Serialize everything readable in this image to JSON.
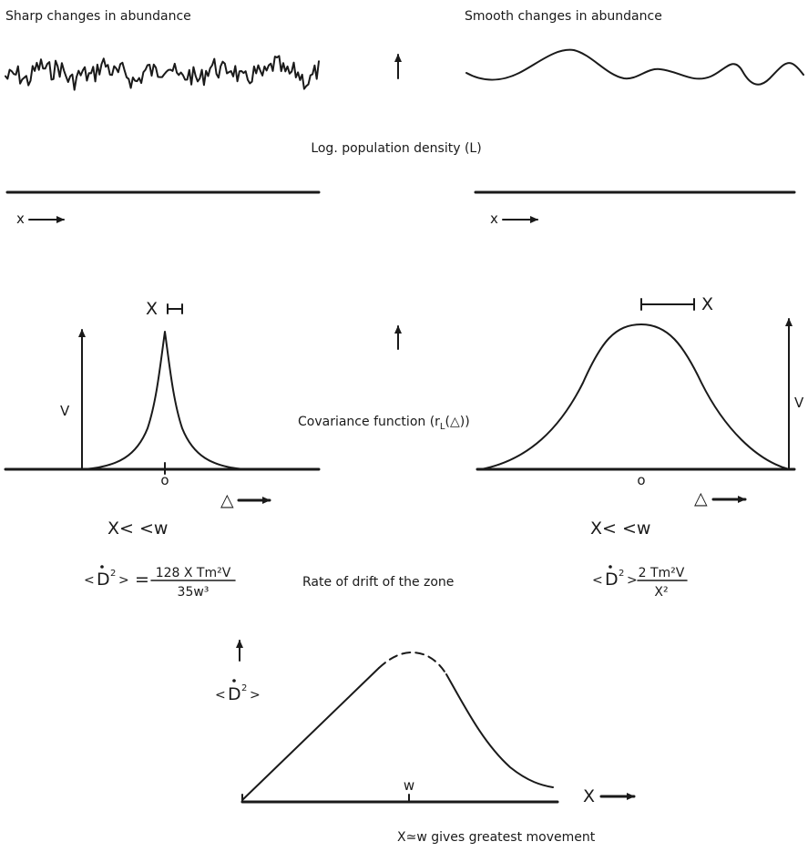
{
  "top": {
    "left_caption": "Sharp changes in abundance",
    "right_caption": "Smooth changes in abundance",
    "center_axis_label": "Log. population density (L)",
    "left_x_label": "x",
    "right_x_label": "x"
  },
  "middle": {
    "center_label": "Covariance function (r",
    "center_label_sub": "L",
    "center_label_arg": "(△))",
    "left": {
      "width_label": "X",
      "y_label": "V",
      "origin_label": "o",
      "delta_label": "△",
      "condition": "X< <w"
    },
    "right": {
      "width_label": "X",
      "y_label": "V",
      "origin_label": "o",
      "delta_label": "△",
      "condition": "X< <w"
    }
  },
  "drift": {
    "center_label": "Rate of drift of the zone",
    "left_formula": {
      "lhs_open": "<",
      "lhs_D": "D",
      "lhs_sup": "2",
      "lhs_close": ">",
      "relation": "=",
      "numerator": "128 X Tm²V",
      "denominator": "35w³"
    },
    "right_formula": {
      "lhs_open": "<",
      "lhs_D": "D",
      "lhs_sup": "2",
      "lhs_close": ">",
      "numerator": "2 Tm²V",
      "denominator": "X²"
    }
  },
  "bottom": {
    "y_label_open": "<",
    "y_label_D": "D",
    "y_label_sup": "2",
    "y_label_close": ">",
    "peak_label": "w",
    "x_label": "X",
    "caption": "X≃w  gives greatest movement"
  }
}
